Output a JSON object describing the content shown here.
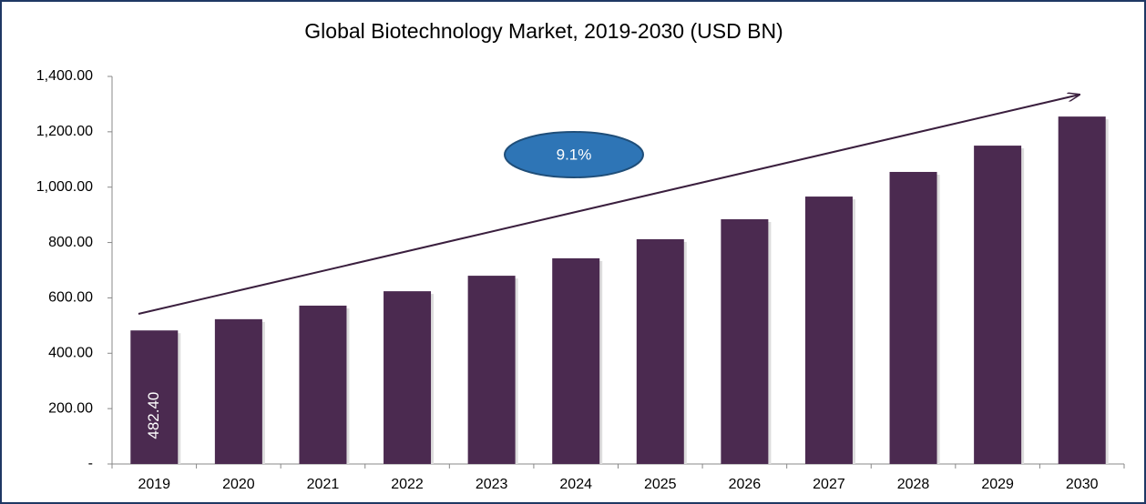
{
  "chart_data": {
    "type": "bar",
    "title": "Global Biotechnology Market, 2019-2030 (USD BN)",
    "categories": [
      "2019",
      "2020",
      "2021",
      "2022",
      "2023",
      "2024",
      "2025",
      "2026",
      "2027",
      "2028",
      "2029",
      "2030"
    ],
    "values": [
      482.4,
      523,
      572,
      624,
      680,
      743,
      812,
      884,
      966,
      1055,
      1150,
      1255
    ],
    "value_labels": [
      "482.40",
      null,
      null,
      null,
      null,
      null,
      null,
      null,
      null,
      null,
      null,
      null
    ],
    "color": "#4b2a50",
    "ylim": [
      0,
      1400
    ],
    "yticks": [
      {
        "value": 0,
        "label": "-"
      },
      {
        "value": 200,
        "label": "200.00"
      },
      {
        "value": 400,
        "label": "400.00"
      },
      {
        "value": 600,
        "label": "600.00"
      },
      {
        "value": 800,
        "label": "800.00"
      },
      {
        "value": 1000,
        "label": "1,000.00"
      },
      {
        "value": 1200,
        "label": "1,200.00"
      },
      {
        "value": 1400,
        "label": "1,400.00"
      }
    ],
    "grid": false,
    "annotation": "9.1%"
  }
}
